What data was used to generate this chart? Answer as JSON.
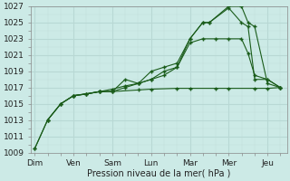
{
  "bg_color": "#cceae6",
  "grid_color": "#aad4ce",
  "line_color": "#1a5c1a",
  "xlabel": "Pression niveau de la mer( hPa )",
  "ylim": [
    1009,
    1027
  ],
  "yticks": [
    1009,
    1011,
    1013,
    1015,
    1017,
    1019,
    1021,
    1023,
    1025,
    1027
  ],
  "x_labels": [
    "Dim",
    "Ven",
    "Sam",
    "Lun",
    "Mar",
    "Mer",
    "Jeu"
  ],
  "x_positions": [
    0,
    1,
    2,
    3,
    4,
    5,
    6
  ],
  "lines": [
    {
      "x": [
        0,
        0.33,
        0.67,
        1.0,
        1.33,
        1.67,
        2.0,
        2.33,
        2.67,
        3.0,
        3.33,
        3.67,
        4.0,
        4.33,
        4.5,
        5.0,
        5.33,
        5.5,
        5.67,
        6.0,
        6.33
      ],
      "y": [
        1009.5,
        1013,
        1015,
        1016,
        1016.2,
        1016.5,
        1016.5,
        1018,
        1017.5,
        1019,
        1019.5,
        1020,
        1023,
        1025,
        1025,
        1027,
        1027,
        1025,
        1024.5,
        1017.5,
        1017
      ]
    },
    {
      "x": [
        0.33,
        0.67,
        1.0,
        1.33,
        1.67,
        2.0,
        2.33,
        2.67,
        3.0,
        3.33,
        3.67,
        4.0,
        4.33,
        4.5,
        5.0,
        5.33,
        5.5,
        5.67,
        6.0,
        6.33
      ],
      "y": [
        1013,
        1015,
        1016,
        1016.2,
        1016.5,
        1016.5,
        1017,
        1017.5,
        1018,
        1019,
        1019.5,
        1023,
        1025,
        1025,
        1026.8,
        1025,
        1024.5,
        1018,
        1018,
        1017
      ]
    },
    {
      "x": [
        1.0,
        1.33,
        1.67,
        2.0,
        2.33,
        2.67,
        3.0,
        3.33,
        3.67,
        4.0,
        4.33,
        4.67,
        5.0,
        5.33,
        5.5,
        5.67,
        6.0,
        6.33
      ],
      "y": [
        1016,
        1016.2,
        1016.5,
        1016.8,
        1017.2,
        1017.5,
        1018,
        1018.5,
        1019.5,
        1022.5,
        1023,
        1023,
        1023,
        1023,
        1021.2,
        1018.5,
        1018,
        1017
      ]
    },
    {
      "x": [
        0,
        0.33,
        0.67,
        1.0,
        1.67,
        2.0,
        2.67,
        3.0,
        3.67,
        4.0,
        4.67,
        5.0,
        5.67,
        6.0,
        6.33
      ],
      "y": [
        1009.5,
        1013,
        1015,
        1016,
        1016.5,
        1016.5,
        1016.7,
        1016.8,
        1016.9,
        1016.9,
        1016.9,
        1016.9,
        1016.9,
        1016.9,
        1017
      ]
    }
  ]
}
